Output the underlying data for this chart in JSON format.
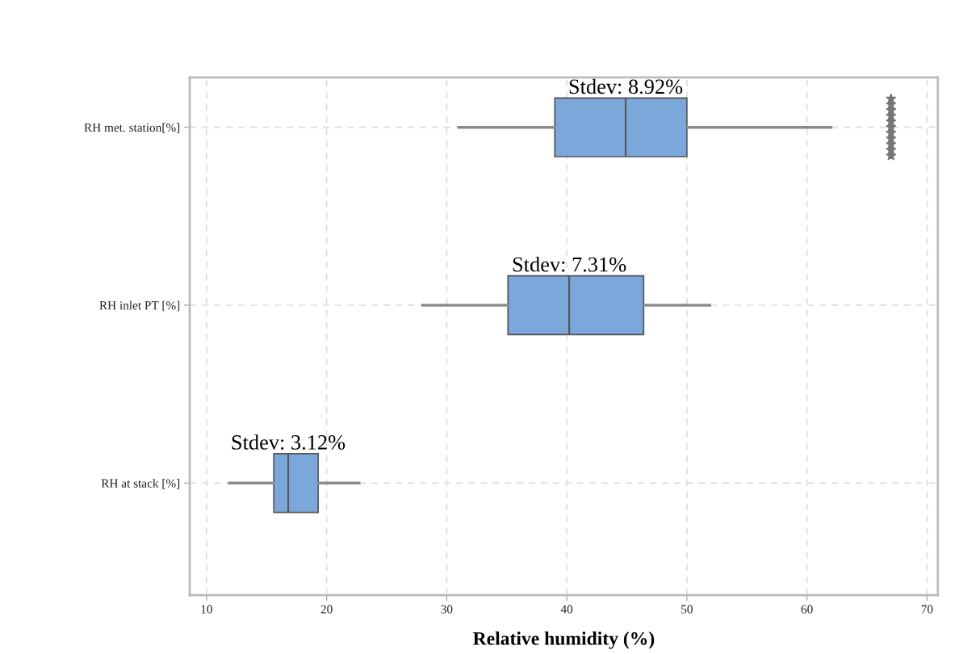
{
  "chart_data": {
    "type": "box",
    "orientation": "horizontal",
    "xlabel": "Relative humidity (%)",
    "categories": [
      "RH met. station[%]",
      "RH inlet PT [%]",
      "RH at stack [%]"
    ],
    "color": "#7ba7da",
    "boxes": [
      {
        "low": 31,
        "q1": 39,
        "median": 44.9,
        "q3": 50,
        "high": 62,
        "outliers": [
          67,
          67,
          67,
          67,
          67,
          67,
          67,
          67,
          67,
          67,
          67
        ]
      },
      {
        "low": 28,
        "q1": 35.1,
        "median": 40.2,
        "q3": 46.4,
        "high": 51.9
      },
      {
        "low": 11.9,
        "q1": 15.6,
        "median": 16.8,
        "q3": 19.3,
        "high": 22.7
      }
    ],
    "xlim": [
      8.6,
      70.9
    ],
    "xticks": [
      10,
      20,
      30,
      40,
      50,
      60,
      70
    ],
    "grid": true,
    "marker": "star",
    "annotations": [
      {
        "text": "Stdev: 8.92%",
        "x": 44.9,
        "y": "RH met. station[%]"
      },
      {
        "text": "Stdev: 7.31%",
        "x": 40.2,
        "y": "RH inlet PT [%]"
      },
      {
        "text": "Stdev: 3.12%",
        "x": 16.8,
        "y": "RH at stack [%]"
      }
    ]
  }
}
